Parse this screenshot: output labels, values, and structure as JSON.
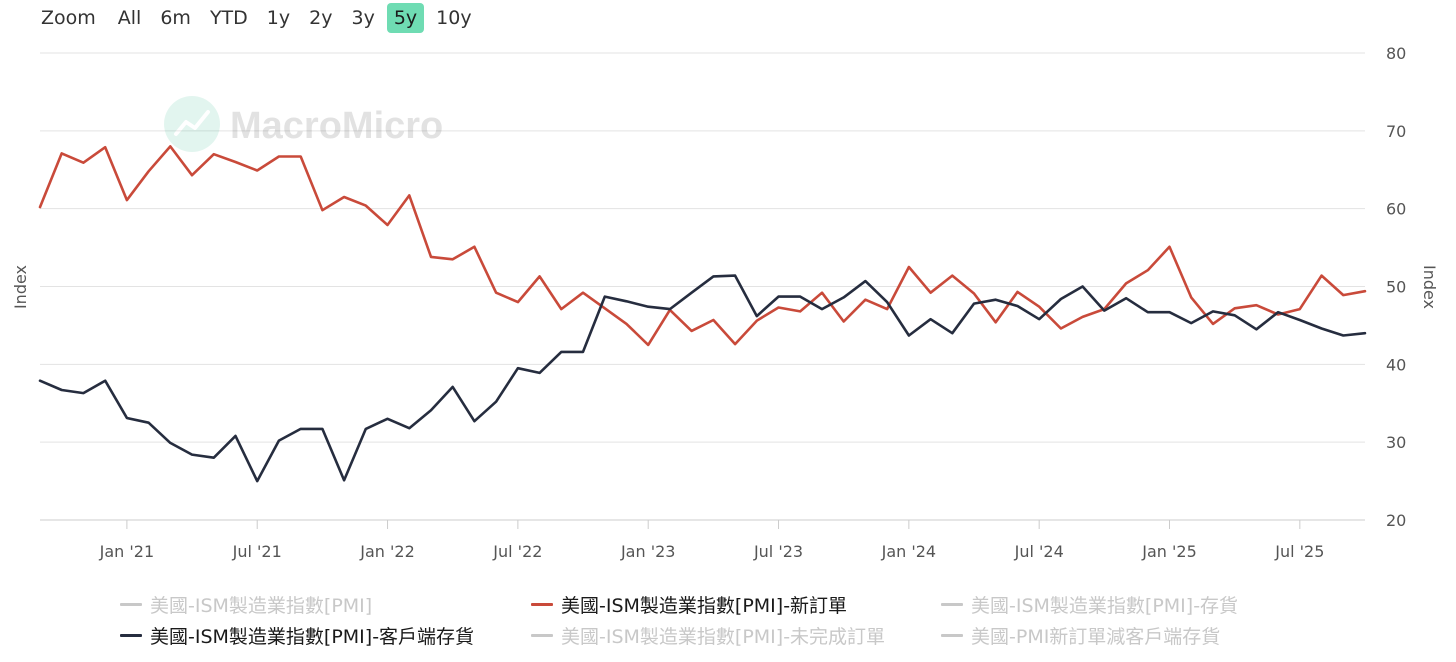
{
  "zoom": {
    "label": "Zoom",
    "buttons": [
      "All",
      "6m",
      "YTD",
      "1y",
      "2y",
      "3y",
      "5y",
      "10y"
    ],
    "active": "5y",
    "active_color": "#6fdcb3"
  },
  "watermark": {
    "text": "MacroMicro",
    "icon": "trend-chart-icon"
  },
  "legend": [
    {
      "label": "美國-ISM製造業指數[PMI]",
      "color": "#c8c8c8",
      "visible": false
    },
    {
      "label": "美國-ISM製造業指數[PMI]-新訂單",
      "color": "#c94a3a",
      "visible": true
    },
    {
      "label": "美國-ISM製造業指數[PMI]-存貨",
      "color": "#c8c8c8",
      "visible": false
    },
    {
      "label": "美國-ISM製造業指數[PMI]-客戶端存貨",
      "color": "#262d3f",
      "visible": true
    },
    {
      "label": "美國-ISM製造業指數[PMI]-未完成訂單",
      "color": "#c8c8c8",
      "visible": false
    },
    {
      "label": "美國-PMI新訂單減客戶端存貨",
      "color": "#c8c8c8",
      "visible": false
    }
  ],
  "chart_data": {
    "type": "line",
    "x_ticks": [
      "Jan '21",
      "Jul '21",
      "Jan '22",
      "Jul '22",
      "Jan '23",
      "Jul '23",
      "Jan '24",
      "Jul '24",
      "Jan '25",
      "Jul '25"
    ],
    "x_range": [
      "2020-09",
      "2025-10"
    ],
    "ylabel_left": "Index",
    "ylabel_right": "Index",
    "y_ticks": [
      20,
      30,
      40,
      50,
      60,
      70,
      80
    ],
    "ylim": [
      20,
      80
    ],
    "grid": true,
    "series": [
      {
        "name": "美國-ISM製造業指數[PMI]-新訂單",
        "color": "#c94a3a",
        "x": [
          "2020-09",
          "2020-10",
          "2020-11",
          "2020-12",
          "2021-01",
          "2021-02",
          "2021-03",
          "2021-04",
          "2021-05",
          "2021-06",
          "2021-07",
          "2021-08",
          "2021-09",
          "2021-10",
          "2021-11",
          "2021-12",
          "2022-01",
          "2022-02",
          "2022-03",
          "2022-04",
          "2022-05",
          "2022-06",
          "2022-07",
          "2022-08",
          "2022-09",
          "2022-10",
          "2022-11",
          "2022-12",
          "2023-01",
          "2023-02",
          "2023-03",
          "2023-04",
          "2023-05",
          "2023-06",
          "2023-07",
          "2023-08",
          "2023-09",
          "2023-10",
          "2023-11",
          "2023-12",
          "2024-01",
          "2024-02",
          "2024-03",
          "2024-04",
          "2024-05",
          "2024-06",
          "2024-07",
          "2024-08",
          "2024-09",
          "2024-10",
          "2024-11",
          "2024-12",
          "2025-01",
          "2025-02",
          "2025-03",
          "2025-04",
          "2025-05",
          "2025-06",
          "2025-07",
          "2025-08",
          "2025-09",
          "2025-10"
        ],
        "values": [
          60.2,
          67.1,
          65.9,
          67.9,
          61.1,
          64.8,
          68.0,
          64.3,
          67.0,
          66.0,
          64.9,
          66.7,
          66.7,
          59.8,
          61.5,
          60.4,
          57.9,
          61.7,
          53.8,
          53.5,
          55.1,
          49.2,
          48.0,
          51.3,
          47.1,
          49.2,
          47.2,
          45.2,
          42.5,
          47.0,
          44.3,
          45.7,
          42.6,
          45.6,
          47.3,
          46.8,
          49.2,
          45.5,
          48.3,
          47.1,
          52.5,
          49.2,
          51.4,
          49.1,
          45.4,
          49.3,
          47.4,
          44.6,
          46.1,
          47.1,
          50.4,
          52.1,
          55.1,
          48.6,
          45.2,
          47.2,
          47.6,
          46.4,
          47.1,
          51.4,
          48.9,
          49.4
        ]
      },
      {
        "name": "美國-ISM製造業指數[PMI]-客戶端存貨",
        "color": "#262d3f",
        "x": [
          "2020-09",
          "2020-10",
          "2020-11",
          "2020-12",
          "2021-01",
          "2021-02",
          "2021-03",
          "2021-04",
          "2021-05",
          "2021-06",
          "2021-07",
          "2021-08",
          "2021-09",
          "2021-10",
          "2021-11",
          "2021-12",
          "2022-01",
          "2022-02",
          "2022-03",
          "2022-04",
          "2022-05",
          "2022-06",
          "2022-07",
          "2022-08",
          "2022-09",
          "2022-10",
          "2022-11",
          "2022-12",
          "2023-01",
          "2023-02",
          "2023-03",
          "2023-04",
          "2023-05",
          "2023-06",
          "2023-07",
          "2023-08",
          "2023-09",
          "2023-10",
          "2023-11",
          "2023-12",
          "2024-01",
          "2024-02",
          "2024-03",
          "2024-04",
          "2024-05",
          "2024-06",
          "2024-07",
          "2024-08",
          "2024-09",
          "2024-10",
          "2024-11",
          "2024-12",
          "2025-01",
          "2025-02",
          "2025-03",
          "2025-04",
          "2025-05",
          "2025-06",
          "2025-07",
          "2025-08",
          "2025-09",
          "2025-10"
        ],
        "values": [
          37.9,
          36.7,
          36.3,
          37.9,
          33.1,
          32.5,
          29.9,
          28.4,
          28.0,
          30.8,
          25.0,
          30.2,
          31.7,
          31.7,
          25.1,
          31.7,
          33.0,
          31.8,
          34.1,
          37.1,
          32.7,
          35.2,
          39.5,
          38.9,
          41.6,
          41.6,
          48.7,
          48.1,
          47.4,
          47.1,
          49.2,
          51.3,
          51.4,
          46.2,
          48.7,
          48.7,
          47.1,
          48.6,
          50.7,
          48.0,
          43.7,
          45.8,
          44.0,
          47.8,
          48.3,
          47.5,
          45.8,
          48.4,
          50.0,
          46.9,
          48.5,
          46.7,
          46.7,
          45.3,
          46.8,
          46.3,
          44.5,
          46.7,
          45.7,
          44.6,
          43.7,
          44.0
        ]
      }
    ]
  }
}
